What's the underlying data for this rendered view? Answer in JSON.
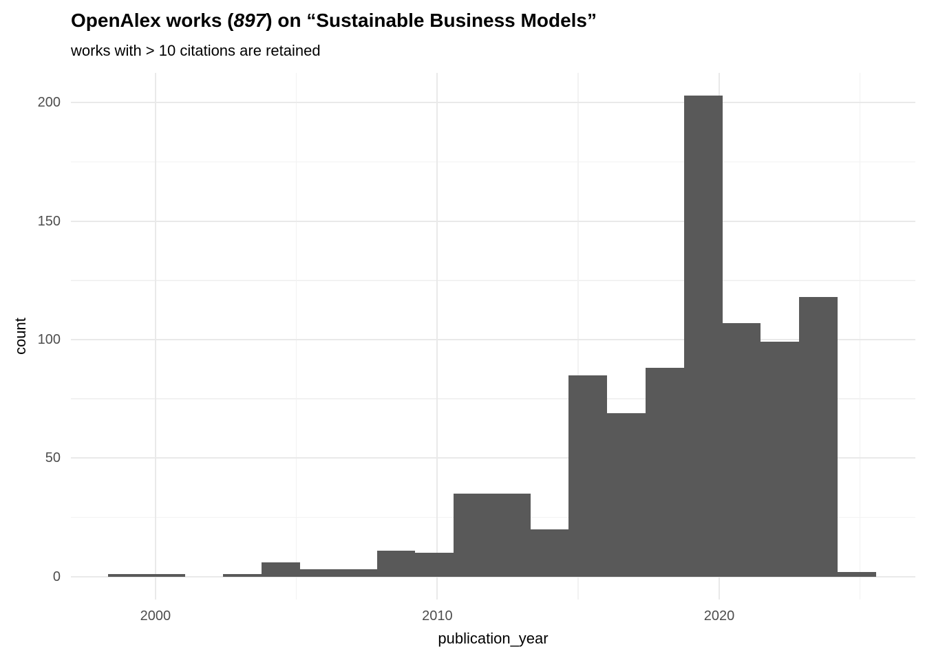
{
  "title": {
    "pre": "OpenAlex works (",
    "num": "897",
    "post": ") on “Sustainable Business Models”"
  },
  "subtitle": "works with > 10 citations are retained",
  "chart_data": {
    "type": "bar",
    "subtype": "histogram",
    "title": "OpenAlex works (897) on “Sustainable Business Models”",
    "subtitle": "works with > 10 citations are retained",
    "xlabel": "publication_year",
    "ylabel": "count",
    "total_works": 897,
    "bin_start": 1998.32,
    "bin_width": 1.3621,
    "counts": [
      1,
      1,
      0,
      1,
      6,
      3,
      3,
      11,
      10,
      35,
      35,
      20,
      85,
      69,
      88,
      203,
      107,
      99,
      118,
      2
    ],
    "x_ticks": [
      2000,
      2010,
      2020
    ],
    "x_minor_ticks": [
      2005,
      2015,
      2025
    ],
    "y_ticks": [
      0,
      50,
      100,
      150,
      200
    ],
    "y_minor_ticks": [
      25,
      75,
      125,
      175
    ],
    "xlim": [
      1997.0,
      2026.96
    ],
    "ylim": [
      -9.7,
      212.6
    ],
    "grid": true,
    "legend": false,
    "colors": {
      "bar": "#595959",
      "grid_major": "#E9E9E9",
      "grid_minor": "#F2F2F2",
      "axis_text": "#4D4D4D",
      "title_text": "#000000",
      "background": "#FFFFFF"
    }
  }
}
